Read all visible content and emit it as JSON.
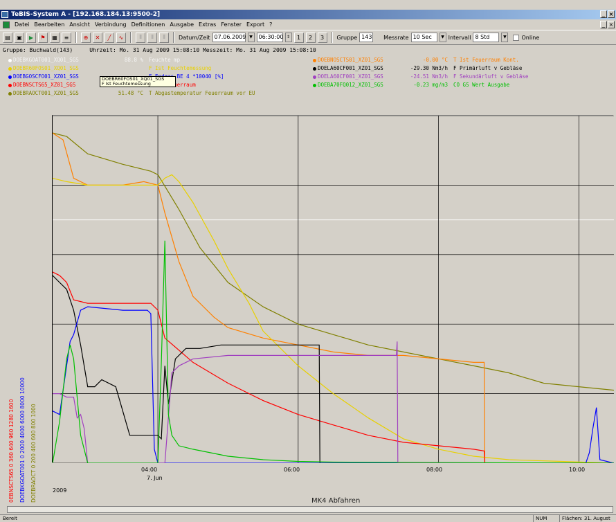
{
  "window": {
    "title": "TeBIS-System A - [192.168.184.13:9500-2]"
  },
  "menu": [
    "Datei",
    "Bearbeiten",
    "Ansicht",
    "Verbindung",
    "Definitionen",
    "Ausgabe",
    "Extras",
    "Fenster",
    "Export",
    "?"
  ],
  "toolbar": {
    "date_label": "Datum/Zeit",
    "date_value": "07.06.2009",
    "time_value": "06:30:00",
    "gruppe_label": "Gruppe",
    "gruppe_value": "143",
    "messrate_label": "Messrate",
    "messrate_value": "10 Sec",
    "intervall_label": "Intervall",
    "intervall_value": "8 Std",
    "online_label": "Online"
  },
  "group_line": "Gruppe: Buchwald(143)     Uhrzeit: Mo. 31 Aug 2009 15:08:10 Messzeit: Mo. 31 Aug 2009 15:08:10",
  "legend": [
    {
      "tag": "DOEBKGOAT001_XQ01_SGS",
      "value": "88.8 %",
      "desc": "Feuchte mp",
      "color": "#ffffff"
    },
    {
      "tag": "DOEBR60FOS01_XQ01_SGS",
      "value": "",
      "desc": "F Ist Feuchtemessung",
      "color": "#e8d000"
    },
    {
      "tag": "DOEBGOSCFO01_XZ01_SGS",
      "value": "",
      "desc": "F Endgas BE 4 *10040 [%]",
      "color": "#0000ff"
    },
    {
      "tag": "DOEBNSCTS65_XZ01_SGS",
      "value": "8.00 °C",
      "desc": "T Ist Feuerraum",
      "color": "#ff0000"
    },
    {
      "tag": "DOEBRAOCT001_XZ01_SGS",
      "value": "51.48 °C",
      "desc": "T Abgastemperatur Feuerraum vor EU",
      "color": "#808000"
    },
    {
      "tag": "DOEBNOSCTS01_XZ01_SGS",
      "value": "-0.00 °C",
      "desc": "T Ist Feuerraum Kont.",
      "color": "#ff8000"
    },
    {
      "tag": "DOELA60CF001_XZ01_SGS",
      "value": "-29.30 Nm3/h",
      "desc": "F Primärluft v Gebläse",
      "color": "#000000"
    },
    {
      "tag": "DOELA60CF001_XZ01_SGS",
      "value": "-24.51 Nm3/h",
      "desc": "F Sekundärluft v Gebläse",
      "color": "#a040c0"
    },
    {
      "tag": "DOEBA70FQ012_XZ01_SGS",
      "value": "-0.23 mg/m3",
      "desc": "CO GS Wert Ausgabe",
      "color": "#00c000"
    }
  ],
  "tooltip": [
    "DOEBR60FOS01_XQ01_SGS",
    "F Ist Feuchtemessung"
  ],
  "y_axis_labels": [
    {
      "text": "0EBNSCTS65 0 360 640 960 1280 1600",
      "color": "#ff0000"
    },
    {
      "text": "DOEBKGOAT001 0 2000 4000 6000 8000 10000",
      "color": "#0000ff"
    },
    {
      "text": "DOEBRAOCT 0 200 400 600 800 1000",
      "color": "#808000"
    }
  ],
  "chart_data": {
    "type": "line",
    "title": "",
    "xlabel": "MK4 Abfahren",
    "x_ticks": [
      "04:00",
      "06:00",
      "08:00",
      "10:00"
    ],
    "x_day_label": "7. Jun",
    "x_year_label": "2009",
    "x_range": [
      2.5,
      10.5
    ],
    "y_range": [
      0,
      100
    ],
    "series": [
      {
        "color": "#808000",
        "x": [
          2.5,
          2.7,
          3.0,
          3.5,
          3.9,
          4.0,
          4.3,
          4.6,
          5.0,
          5.5,
          6.0,
          6.5,
          7.0,
          7.5,
          8.0,
          8.5,
          9.0,
          9.5,
          10.0,
          10.5
        ],
        "y": [
          95,
          94,
          89,
          86,
          84,
          83,
          73,
          62,
          52,
          45,
          40,
          37,
          34,
          32,
          30,
          28,
          26,
          23,
          22,
          21
        ]
      },
      {
        "color": "#ff8000",
        "x": [
          2.5,
          2.65,
          2.8,
          3.0,
          3.2,
          3.5,
          3.8,
          4.0,
          4.1,
          4.3,
          4.5,
          4.8,
          5.0,
          5.5,
          6.0,
          6.5,
          7.0,
          7.5,
          8.0,
          8.5,
          8.65,
          8.66,
          10.5
        ],
        "y": [
          95,
          93,
          82,
          80,
          80,
          80,
          81,
          80,
          72,
          58,
          48,
          42,
          39,
          36,
          34,
          32,
          31,
          31,
          30,
          29,
          29,
          0,
          0
        ]
      },
      {
        "color": "#e8d000",
        "x": [
          2.5,
          2.7,
          3.0,
          3.5,
          4.0,
          4.1,
          4.2,
          4.3,
          4.5,
          4.8,
          5.0,
          5.3,
          5.5,
          6.0,
          6.5,
          7.0,
          7.5,
          8.0,
          8.5,
          9.0,
          10.5
        ],
        "y": [
          82,
          81,
          80,
          80,
          80,
          82,
          83,
          81,
          75,
          64,
          56,
          46,
          38,
          28,
          20,
          13,
          7,
          4,
          2,
          1,
          0
        ]
      },
      {
        "color": "#ff0000",
        "x": [
          2.5,
          2.6,
          2.7,
          2.8,
          3.0,
          3.5,
          3.9,
          4.0,
          4.1,
          4.5,
          5.0,
          5.5,
          6.0,
          6.5,
          7.0,
          7.5,
          8.0,
          8.5,
          8.65,
          8.66,
          10.5
        ],
        "y": [
          55,
          54,
          52,
          47,
          46,
          46,
          46,
          44,
          36,
          29,
          23,
          18,
          14,
          11,
          8,
          6,
          5,
          4,
          3.5,
          0,
          0
        ]
      },
      {
        "color": "#000000",
        "x": [
          2.5,
          2.6,
          2.7,
          2.8,
          2.9,
          3.0,
          3.1,
          3.2,
          3.4,
          3.6,
          3.9,
          4.0,
          4.05,
          4.1,
          4.15,
          4.25,
          4.4,
          4.6,
          4.9,
          5.0,
          6.0,
          6.3,
          6.31,
          10.5
        ],
        "y": [
          54,
          52,
          50,
          44,
          34,
          22,
          22,
          24,
          22,
          8,
          8,
          8,
          7,
          28,
          17,
          30,
          33,
          33,
          34,
          34,
          34,
          34,
          0,
          0
        ]
      },
      {
        "color": "#0000ff",
        "x": [
          2.5,
          2.6,
          2.75,
          2.8,
          2.9,
          3.0,
          3.5,
          3.85,
          3.9,
          3.95,
          4.0,
          4.05,
          10.1,
          10.15,
          10.2,
          10.25,
          10.3,
          10.5
        ],
        "y": [
          15,
          14,
          35,
          37,
          44,
          45,
          44,
          44,
          43,
          4,
          0,
          0,
          0,
          3,
          10,
          16,
          1,
          0
        ]
      },
      {
        "color": "#a040c0",
        "x": [
          2.5,
          2.6,
          2.7,
          2.8,
          2.85,
          2.9,
          2.95,
          3.0,
          4.1,
          4.2,
          4.3,
          4.5,
          5.0,
          6.0,
          6.5,
          7.0,
          7.4,
          7.41,
          7.42,
          10.5
        ],
        "y": [
          20,
          20,
          19,
          19,
          13,
          14,
          10,
          0,
          0,
          26,
          28,
          30,
          31,
          31,
          31,
          31,
          31,
          35,
          0,
          0
        ]
      },
      {
        "color": "#00c000",
        "x": [
          2.5,
          2.6,
          2.7,
          2.75,
          2.8,
          2.9,
          3.0,
          4.0,
          4.05,
          4.1,
          4.15,
          4.2,
          4.3,
          4.5,
          5.0,
          5.5,
          6.0,
          6.5,
          10.5
        ],
        "y": [
          0,
          12,
          30,
          34,
          30,
          8,
          0,
          0,
          29,
          64,
          14,
          8,
          5,
          4,
          2,
          1,
          0.5,
          0.3,
          0
        ]
      }
    ]
  },
  "status": {
    "left": "Bereit",
    "num": "NUM",
    "zoom": "Flächen: 31. August"
  }
}
